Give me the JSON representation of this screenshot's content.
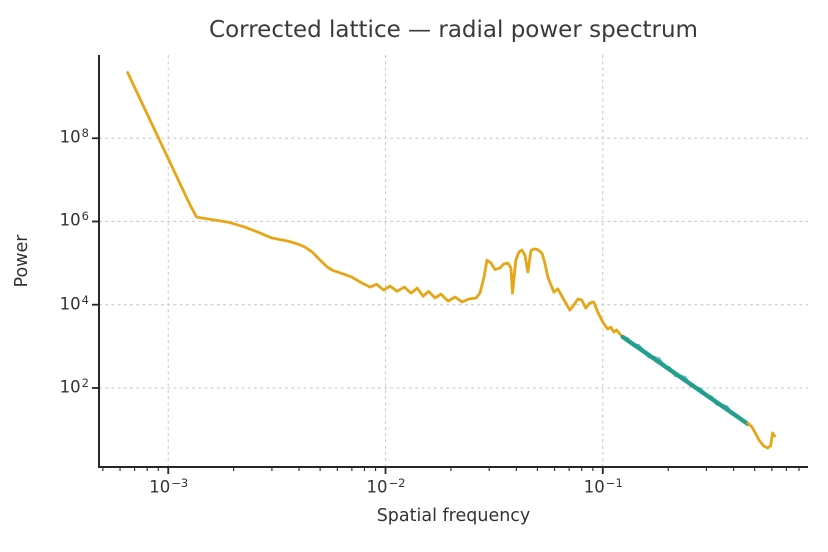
{
  "chart_data": {
    "type": "line",
    "title": "Corrected lattice — radial power spectrum",
    "xlabel": "Spatial frequency",
    "ylabel": "Power",
    "xscale": "log",
    "yscale": "log",
    "xlim": [
      0.00048,
      0.88
    ],
    "ylim": [
      1.26,
      10000000000.0
    ],
    "grid": true,
    "legend": "none",
    "x_major_ticks": [
      0.001,
      0.01,
      0.1
    ],
    "x_tick_exponents": [
      -3,
      -2,
      -1
    ],
    "y_major_ticks": [
      100.0,
      10000.0,
      1000000.0,
      100000000.0
    ],
    "y_tick_exponents": [
      2,
      4,
      6,
      8
    ],
    "colors": {
      "spectrum": "#e6a617",
      "fit_line": "#22a08c",
      "fit_range_data": "#6fb2d8",
      "grid": "#cccccc",
      "spine": "#262626",
      "text": "#333333"
    },
    "series": [
      {
        "name": "radial-spectrum-low-frequency",
        "color_key": "spectrum",
        "width": 2.8,
        "points": [
          [
            0.00065,
            3800000000.0
          ],
          [
            0.00126,
            2500000.0
          ],
          [
            0.00135,
            1270000.0
          ],
          [
            0.00159,
            1110000.0
          ],
          [
            0.00189,
            960000.0
          ],
          [
            0.00226,
            730000.0
          ],
          [
            0.0026,
            550000.0
          ],
          [
            0.003,
            400000.0
          ],
          [
            0.00356,
            337000.0
          ],
          [
            0.00396,
            286000.0
          ],
          [
            0.00426,
            242000.0
          ],
          [
            0.0046,
            184000.0
          ],
          [
            0.005,
            118000.0
          ],
          [
            0.0054,
            80000.0
          ],
          [
            0.0057,
            67000.0
          ],
          [
            0.0062,
            58000.0
          ],
          [
            0.007,
            46000.0
          ],
          [
            0.0078,
            33000.0
          ],
          [
            0.0085,
            26500.0
          ],
          [
            0.0091,
            31000.0
          ],
          [
            0.0098,
            22500.0
          ],
          [
            0.0105,
            28000.0
          ],
          [
            0.0113,
            21000.0
          ],
          [
            0.0122,
            26500.0
          ],
          [
            0.0131,
            19000.0
          ],
          [
            0.014,
            25000.0
          ],
          [
            0.0149,
            16000.0
          ],
          [
            0.0158,
            21000.0
          ],
          [
            0.0169,
            14500.0
          ],
          [
            0.018,
            18000.0
          ],
          [
            0.0194,
            12200.0
          ],
          [
            0.0209,
            15300.0
          ],
          [
            0.0225,
            11600.0
          ],
          [
            0.0242,
            13700.0
          ],
          [
            0.0261,
            14500.0
          ],
          [
            0.0272,
            19000.0
          ],
          [
            0.0284,
            46000.0
          ],
          [
            0.0293,
            118000.0
          ],
          [
            0.0306,
            100000.0
          ],
          [
            0.0319,
            70000.0
          ],
          [
            0.0336,
            76000.0
          ],
          [
            0.035,
            95000.0
          ],
          [
            0.0366,
            100000.0
          ],
          [
            0.0378,
            76000.0
          ],
          [
            0.0384,
            19000.0
          ],
          [
            0.0398,
            118000.0
          ],
          [
            0.0411,
            184000.0
          ],
          [
            0.0424,
            205000.0
          ],
          [
            0.0438,
            156000.0
          ],
          [
            0.0452,
            61000.0
          ],
          [
            0.0467,
            200000.0
          ],
          [
            0.0482,
            220000.0
          ],
          [
            0.0502,
            210000.0
          ],
          [
            0.0525,
            174000.0
          ],
          [
            0.0541,
            100000.0
          ],
          [
            0.0559,
            46000.0
          ],
          [
            0.0577,
            30000.0
          ],
          [
            0.0596,
            20000.0
          ],
          [
            0.0621,
            24000.0
          ],
          [
            0.0648,
            16000.0
          ],
          [
            0.0676,
            11000.0
          ],
          [
            0.0705,
            7400.0
          ],
          [
            0.0736,
            9800.0
          ],
          [
            0.0768,
            13700.0
          ],
          [
            0.08,
            13000.0
          ],
          [
            0.0835,
            8300.0
          ],
          [
            0.0871,
            11000.0
          ],
          [
            0.0908,
            11600.0
          ],
          [
            0.0948,
            6700.0
          ],
          [
            0.0989,
            4300.0
          ],
          [
            0.102,
            3250.0
          ],
          [
            0.1054,
            2600.0
          ],
          [
            0.1089,
            2900.0
          ],
          [
            0.1124,
            2200.0
          ],
          [
            0.1159,
            2470.0
          ],
          [
            0.1197,
            1980.0
          ],
          [
            0.1236,
            1670.0
          ]
        ]
      },
      {
        "name": "fit-range-spectrum-data",
        "color_key": "fit_range_data",
        "width": 2.4,
        "points": [
          [
            0.1236,
            1675
          ],
          [
            0.1306,
            1538
          ],
          [
            0.138,
            1047
          ],
          [
            0.1459,
            1079
          ],
          [
            0.1542,
            785
          ],
          [
            0.1629,
            547
          ],
          [
            0.1722,
            551
          ],
          [
            0.182,
            506
          ],
          [
            0.1923,
            321
          ],
          [
            0.2033,
            309
          ],
          [
            0.2148,
            196
          ],
          [
            0.227,
            198
          ],
          [
            0.2399,
            181
          ],
          [
            0.2535,
            112
          ],
          [
            0.2679,
            106
          ],
          [
            0.2831,
            95
          ],
          [
            0.2992,
            63
          ],
          [
            0.3162,
            62
          ],
          [
            0.3342,
            40
          ],
          [
            0.3532,
            39
          ],
          [
            0.3733,
            36
          ],
          [
            0.3945,
            24
          ],
          [
            0.4169,
            22
          ],
          [
            0.4406,
            15.5
          ],
          [
            0.4645,
            13.7
          ]
        ]
      },
      {
        "name": "power-law-fit-line",
        "color_key": "fit_line",
        "width": 4.4,
        "points": [
          [
            0.1236,
            1675
          ],
          [
            0.4645,
            13.7
          ]
        ]
      },
      {
        "name": "radial-spectrum-high-frequency-tail",
        "color_key": "spectrum",
        "width": 2.8,
        "points": [
          [
            0.465,
            14.5
          ],
          [
            0.485,
            11.6
          ],
          [
            0.506,
            7.9
          ],
          [
            0.527,
            5.3
          ],
          [
            0.55,
            4.05
          ],
          [
            0.574,
            3.6
          ],
          [
            0.592,
            4.05
          ],
          [
            0.598,
            5.6
          ],
          [
            0.605,
            8.3
          ],
          [
            0.618,
            7.0
          ]
        ]
      }
    ]
  }
}
